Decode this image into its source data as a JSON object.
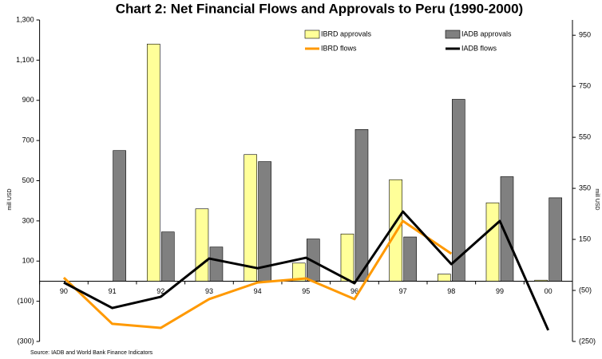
{
  "chart_data": {
    "type": "bar",
    "title": "Chart 2: Net Financial Flows and Approvals to Peru (1990-2000)",
    "y_label": "mill USD",
    "y2_label": "mill USD",
    "source": "Source: IADB and World Bank Finance Indicators",
    "categories": [
      "90",
      "91",
      "92",
      "93",
      "94",
      "95",
      "96",
      "97",
      "98",
      "99",
      "00"
    ],
    "series": [
      {
        "name": "IBRD approvals",
        "type": "bar",
        "color": "#ffff99",
        "values": [
          null,
          null,
          1180,
          360,
          630,
          90,
          235,
          505,
          35,
          390,
          5
        ]
      },
      {
        "name": "IADB approvals",
        "type": "bar",
        "color": "#808080",
        "values": [
          null,
          650,
          245,
          170,
          595,
          210,
          755,
          220,
          905,
          520,
          415
        ]
      },
      {
        "name": "IBRD flows",
        "type": "line",
        "axis": "y2",
        "color": "#ff9900",
        "values": [
          0,
          -181,
          -197,
          -84,
          -19,
          -3,
          -84,
          222,
          94,
          null,
          null
        ]
      },
      {
        "name": "IADB flows",
        "type": "line",
        "axis": "y2",
        "color": "#000000",
        "values": [
          -19,
          -119,
          -75,
          75,
          37,
          78,
          -22,
          259,
          53,
          222,
          -206
        ]
      }
    ],
    "ylim": [
      -300,
      1300
    ],
    "yticks": [
      {
        "value": 1300,
        "label": "1,300"
      },
      {
        "value": 1100,
        "label": "1,100"
      },
      900,
      700,
      500,
      300,
      100,
      {
        "value": -100,
        "label": "(100)"
      },
      {
        "value": -300,
        "label": "(300)"
      }
    ],
    "y2lim": [
      -250,
      1010
    ],
    "y2ticks": [
      950,
      750,
      550,
      350,
      150,
      {
        "value": -50,
        "label": "(50)"
      },
      {
        "value": -250,
        "label": "(250)"
      }
    ]
  }
}
